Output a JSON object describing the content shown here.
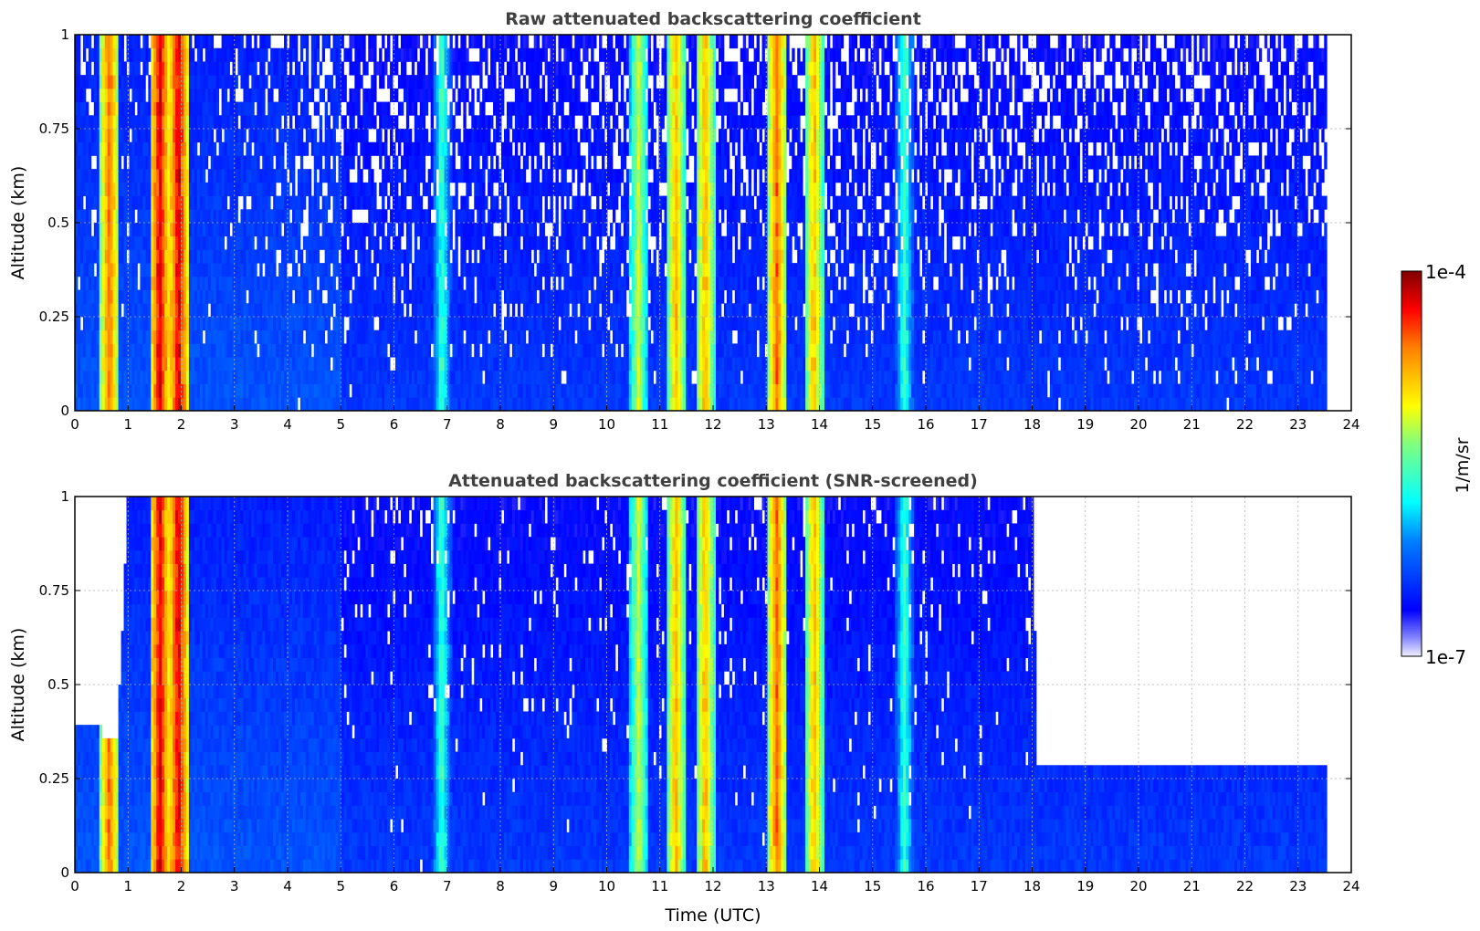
{
  "chart_data": [
    {
      "type": "heatmap",
      "title": "Raw attenuated backscattering coefficient",
      "xlabel": "",
      "ylabel": "Altitude (km)",
      "xlim": [
        0,
        24
      ],
      "ylim": [
        0,
        1
      ],
      "x_ticks": [
        "0",
        "1",
        "2",
        "3",
        "4",
        "5",
        "6",
        "7",
        "8",
        "9",
        "10",
        "11",
        "12",
        "13",
        "14",
        "15",
        "16",
        "17",
        "18",
        "19",
        "20",
        "21",
        "22",
        "23",
        "24"
      ],
      "y_ticks": [
        "0",
        "0.25",
        "0.5",
        "0.75",
        "1"
      ],
      "data_end_time_utc": 23.55,
      "grid": true,
      "color_scale": "log",
      "features": [
        {
          "time_utc": 0.65,
          "intensity": "yellow-red, full column"
        },
        {
          "time_utc": 1.6,
          "intensity": "red to dark red, full column"
        },
        {
          "time_utc": 1.95,
          "intensity": "dark red near top"
        },
        {
          "time_utc": 6.9,
          "intensity": "cyan-green"
        },
        {
          "time_utc": 10.6,
          "intensity": "green-yellow"
        },
        {
          "time_utc": 11.3,
          "intensity": "yellow-orange"
        },
        {
          "time_utc": 11.85,
          "intensity": "orange"
        },
        {
          "time_utc": 13.2,
          "intensity": "red-orange, full column"
        },
        {
          "time_utc": 13.9,
          "intensity": "yellow-orange"
        },
        {
          "time_utc": 15.6,
          "intensity": "cyan-green"
        }
      ]
    },
    {
      "type": "heatmap",
      "title": "Attenuated backscattering coefficient (SNR-screened)",
      "xlabel": "Time (UTC)",
      "ylabel": "Altitude (km)",
      "xlim": [
        0,
        24
      ],
      "ylim": [
        0,
        1
      ],
      "x_ticks": [
        "0",
        "1",
        "2",
        "3",
        "4",
        "5",
        "6",
        "7",
        "8",
        "9",
        "10",
        "11",
        "12",
        "13",
        "14",
        "15",
        "16",
        "17",
        "18",
        "19",
        "20",
        "21",
        "22",
        "23",
        "24"
      ],
      "y_ticks": [
        "0",
        "0.25",
        "0.5",
        "0.75",
        "1"
      ],
      "data_end_time_utc": 23.55,
      "grid": true,
      "color_scale": "log",
      "screened_top_km": [
        {
          "time_utc": 0.0,
          "top_km": 0.37
        },
        {
          "time_utc": 0.45,
          "top_km": 0.37
        },
        {
          "time_utc": 0.8,
          "top_km": 0.34
        },
        {
          "time_utc": 1.0,
          "top_km": 1.0
        },
        {
          "time_utc": 2.3,
          "top_km": 1.0
        },
        {
          "time_utc": 5.0,
          "top_km": 1.0
        },
        {
          "time_utc": 15.7,
          "top_km": 1.0
        },
        {
          "time_utc": 18.0,
          "top_km": 1.0
        },
        {
          "time_utc": 18.1,
          "top_km": 0.29
        },
        {
          "time_utc": 18.8,
          "top_km": 0.28
        },
        {
          "time_utc": 19.6,
          "top_km": 0.29
        },
        {
          "time_utc": 21.5,
          "top_km": 0.28
        },
        {
          "time_utc": 22.2,
          "top_km": 0.27
        },
        {
          "time_utc": 23.55,
          "top_km": 0.27
        }
      ]
    }
  ],
  "colorbar": {
    "label": "1/m/sr",
    "max_label": "1e-4",
    "min_label": "1e-7",
    "colormap": "jet",
    "min_value": 1e-07,
    "max_value": 0.0001
  }
}
